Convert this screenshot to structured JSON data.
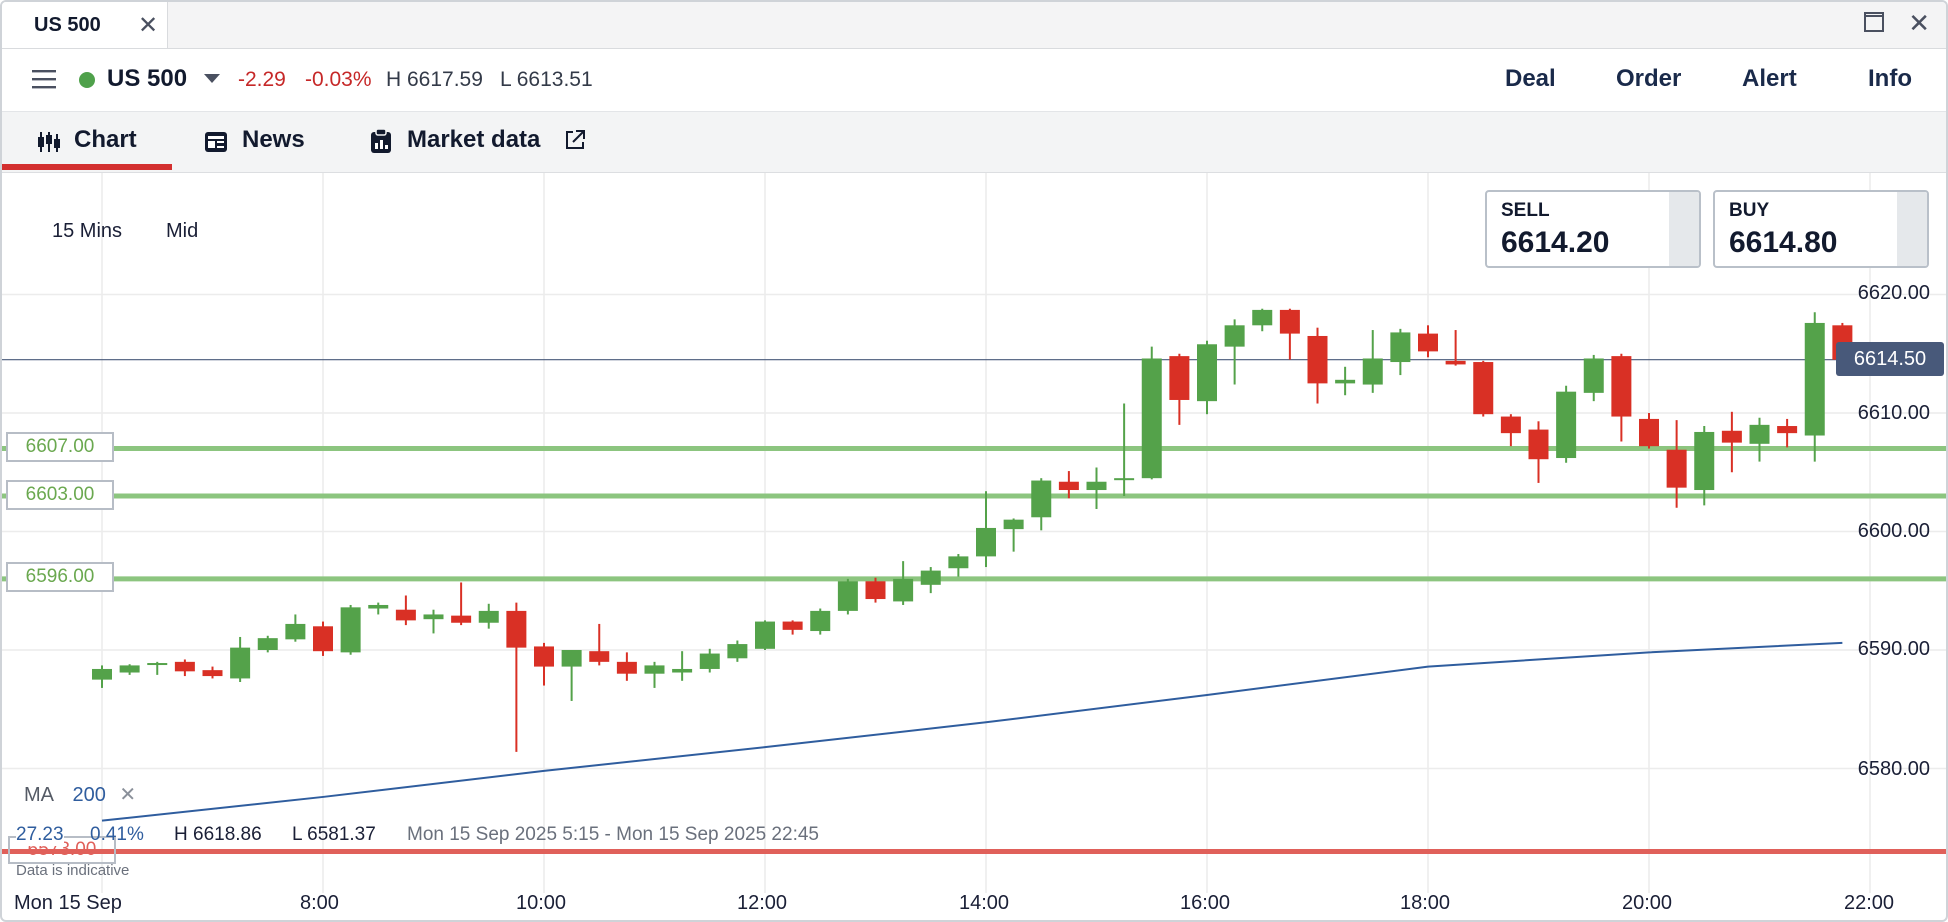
{
  "window": {
    "tab_title": "US 500",
    "close_glyph": "✕",
    "close_window_glyph": "✕"
  },
  "header": {
    "instrument": "US 500",
    "change": "-2.29",
    "change_pct": "-0.03%",
    "high": "H 6617.59",
    "low": "L 6613.51",
    "actions": [
      "Deal",
      "Order",
      "Alert",
      "Info"
    ]
  },
  "tabs": {
    "chart": "Chart",
    "news": "News",
    "market_data": "Market data"
  },
  "chart_panel": {
    "timeframe": "15 Mins",
    "price_type": "Mid",
    "sell_label": "SELL",
    "sell_price": "6614.20",
    "buy_label": "BUY",
    "buy_price": "6614.80",
    "current_price": "6614.50",
    "price_axis": [
      "6620.00",
      "6610.00",
      "6600.00",
      "6590.00",
      "6580.00"
    ],
    "time_axis": [
      "Mon 15 Sep",
      "8:00",
      "10:00",
      "12:00",
      "14:00",
      "16:00",
      "18:00",
      "20:00",
      "22:00"
    ],
    "levels": {
      "green": [
        "6607.00",
        "6603.00",
        "6596.00"
      ],
      "red": "6573.00"
    },
    "ma_label": "MA",
    "ma_period": "200",
    "ma_remove_glyph": "✕",
    "stats": {
      "range": "27.23",
      "range_pct": "0.41%",
      "high": "H 6618.86",
      "low": "L 6581.37",
      "period": "Mon 15 Sep 2025 5:15 - Mon 15 Sep 2025 22:45"
    },
    "disclaimer": "Data is indicative"
  },
  "colors": {
    "up": "#54a24a",
    "down": "#d93025",
    "ma_line": "#2f5d9e",
    "level_green": "#8cc57f",
    "level_red": "#e0605a"
  },
  "chart_data": {
    "type": "candlestick",
    "interval": "15 Mins",
    "date": "Mon 15 Sep 2025",
    "y_range": [
      6572,
      6624
    ],
    "candles": [
      {
        "t": "6:00",
        "o": 6587.5,
        "h": 6588.7,
        "l": 6586.8,
        "c": 6588.4
      },
      {
        "t": "6:15",
        "o": 6588.1,
        "h": 6588.8,
        "l": 6587.9,
        "c": 6588.7
      },
      {
        "t": "6:30",
        "o": 6588.8,
        "h": 6589.0,
        "l": 6587.9,
        "c": 6588.9
      },
      {
        "t": "6:45",
        "o": 6589.0,
        "h": 6589.2,
        "l": 6587.8,
        "c": 6588.2
      },
      {
        "t": "7:00",
        "o": 6588.3,
        "h": 6588.6,
        "l": 6587.6,
        "c": 6587.8
      },
      {
        "t": "7:15",
        "o": 6587.6,
        "h": 6591.1,
        "l": 6587.3,
        "c": 6590.2
      },
      {
        "t": "7:30",
        "o": 6590.0,
        "h": 6591.2,
        "l": 6589.8,
        "c": 6591.0
      },
      {
        "t": "7:45",
        "o": 6590.9,
        "h": 6593.0,
        "l": 6590.7,
        "c": 6592.2
      },
      {
        "t": "8:00",
        "o": 6592.0,
        "h": 6592.4,
        "l": 6589.5,
        "c": 6589.9
      },
      {
        "t": "8:15",
        "o": 6589.8,
        "h": 6593.8,
        "l": 6589.6,
        "c": 6593.6
      },
      {
        "t": "8:30",
        "o": 6593.5,
        "h": 6594.0,
        "l": 6593.0,
        "c": 6593.8
      },
      {
        "t": "8:45",
        "o": 6593.4,
        "h": 6594.6,
        "l": 6592.1,
        "c": 6592.5
      },
      {
        "t": "9:00",
        "o": 6592.6,
        "h": 6593.4,
        "l": 6591.4,
        "c": 6593.0
      },
      {
        "t": "9:15",
        "o": 6592.9,
        "h": 6595.7,
        "l": 6592.1,
        "c": 6592.3
      },
      {
        "t": "9:30",
        "o": 6592.3,
        "h": 6593.9,
        "l": 6591.8,
        "c": 6593.3
      },
      {
        "t": "9:45",
        "o": 6593.3,
        "h": 6594.0,
        "l": 6581.4,
        "c": 6590.2
      },
      {
        "t": "10:00",
        "o": 6590.3,
        "h": 6590.6,
        "l": 6587.0,
        "c": 6588.6
      },
      {
        "t": "10:15",
        "o": 6588.6,
        "h": 6590.0,
        "l": 6585.7,
        "c": 6590.0
      },
      {
        "t": "10:30",
        "o": 6589.9,
        "h": 6592.2,
        "l": 6588.7,
        "c": 6589.0
      },
      {
        "t": "10:45",
        "o": 6589.0,
        "h": 6589.8,
        "l": 6587.4,
        "c": 6588.0
      },
      {
        "t": "11:00",
        "o": 6588.0,
        "h": 6589.0,
        "l": 6586.8,
        "c": 6588.7
      },
      {
        "t": "11:15",
        "o": 6588.1,
        "h": 6589.9,
        "l": 6587.4,
        "c": 6588.4
      },
      {
        "t": "11:30",
        "o": 6588.4,
        "h": 6590.1,
        "l": 6588.1,
        "c": 6589.7
      },
      {
        "t": "11:45",
        "o": 6589.3,
        "h": 6590.8,
        "l": 6589.0,
        "c": 6590.5
      },
      {
        "t": "12:00",
        "o": 6590.1,
        "h": 6592.5,
        "l": 6590.0,
        "c": 6592.4
      },
      {
        "t": "12:15",
        "o": 6592.4,
        "h": 6592.5,
        "l": 6591.3,
        "c": 6591.7
      },
      {
        "t": "12:30",
        "o": 6591.6,
        "h": 6593.5,
        "l": 6591.3,
        "c": 6593.3
      },
      {
        "t": "12:45",
        "o": 6593.3,
        "h": 6596.0,
        "l": 6593.0,
        "c": 6595.8
      },
      {
        "t": "13:00",
        "o": 6595.8,
        "h": 6596.1,
        "l": 6594.0,
        "c": 6594.3
      },
      {
        "t": "13:15",
        "o": 6594.1,
        "h": 6597.5,
        "l": 6593.8,
        "c": 6596.0
      },
      {
        "t": "13:30",
        "o": 6595.5,
        "h": 6597.0,
        "l": 6594.8,
        "c": 6596.7
      },
      {
        "t": "13:45",
        "o": 6596.9,
        "h": 6598.1,
        "l": 6596.2,
        "c": 6597.9
      },
      {
        "t": "14:00",
        "o": 6597.9,
        "h": 6603.4,
        "l": 6597.0,
        "c": 6600.3
      },
      {
        "t": "14:15",
        "o": 6600.2,
        "h": 6601.1,
        "l": 6598.3,
        "c": 6601.0
      },
      {
        "t": "14:30",
        "o": 6601.2,
        "h": 6604.5,
        "l": 6600.1,
        "c": 6604.3
      },
      {
        "t": "14:45",
        "o": 6604.2,
        "h": 6605.1,
        "l": 6602.8,
        "c": 6603.5
      },
      {
        "t": "15:00",
        "o": 6603.5,
        "h": 6605.4,
        "l": 6601.9,
        "c": 6604.2
      },
      {
        "t": "15:15",
        "o": 6604.4,
        "h": 6610.8,
        "l": 6603.0,
        "c": 6604.5
      },
      {
        "t": "15:30",
        "o": 6604.5,
        "h": 6615.6,
        "l": 6604.4,
        "c": 6614.6
      },
      {
        "t": "15:45",
        "o": 6614.8,
        "h": 6615.0,
        "l": 6609.0,
        "c": 6611.1
      },
      {
        "t": "16:00",
        "o": 6611.0,
        "h": 6616.1,
        "l": 6609.9,
        "c": 6615.8
      },
      {
        "t": "16:15",
        "o": 6615.6,
        "h": 6617.9,
        "l": 6612.4,
        "c": 6617.4
      },
      {
        "t": "16:30",
        "o": 6617.4,
        "h": 6618.8,
        "l": 6616.9,
        "c": 6618.7
      },
      {
        "t": "16:45",
        "o": 6618.7,
        "h": 6618.8,
        "l": 6614.5,
        "c": 6616.7
      },
      {
        "t": "17:00",
        "o": 6616.5,
        "h": 6617.2,
        "l": 6610.8,
        "c": 6612.5
      },
      {
        "t": "17:15",
        "o": 6612.5,
        "h": 6613.9,
        "l": 6611.5,
        "c": 6612.8
      },
      {
        "t": "17:30",
        "o": 6612.4,
        "h": 6617.0,
        "l": 6611.7,
        "c": 6614.6
      },
      {
        "t": "17:45",
        "o": 6614.3,
        "h": 6617.1,
        "l": 6613.2,
        "c": 6616.8
      },
      {
        "t": "18:00",
        "o": 6616.7,
        "h": 6617.4,
        "l": 6614.7,
        "c": 6615.2
      },
      {
        "t": "18:15",
        "o": 6614.4,
        "h": 6617.0,
        "l": 6614.0,
        "c": 6614.1
      },
      {
        "t": "18:30",
        "o": 6614.3,
        "h": 6614.4,
        "l": 6609.7,
        "c": 6609.9
      },
      {
        "t": "18:45",
        "o": 6609.7,
        "h": 6609.9,
        "l": 6607.2,
        "c": 6608.3
      },
      {
        "t": "19:00",
        "o": 6608.6,
        "h": 6609.3,
        "l": 6604.1,
        "c": 6606.1
      },
      {
        "t": "19:15",
        "o": 6606.2,
        "h": 6612.3,
        "l": 6605.8,
        "c": 6611.8
      },
      {
        "t": "19:30",
        "o": 6611.7,
        "h": 6614.9,
        "l": 6611.0,
        "c": 6614.6
      },
      {
        "t": "19:45",
        "o": 6614.8,
        "h": 6615.0,
        "l": 6607.6,
        "c": 6609.7
      },
      {
        "t": "20:00",
        "o": 6609.5,
        "h": 6610.0,
        "l": 6607.0,
        "c": 6607.2
      },
      {
        "t": "20:15",
        "o": 6606.9,
        "h": 6609.4,
        "l": 6602.0,
        "c": 6603.7
      },
      {
        "t": "20:30",
        "o": 6603.5,
        "h": 6608.9,
        "l": 6602.2,
        "c": 6608.4
      },
      {
        "t": "20:45",
        "o": 6608.5,
        "h": 6610.1,
        "l": 6605.0,
        "c": 6607.5
      },
      {
        "t": "21:00",
        "o": 6607.4,
        "h": 6609.6,
        "l": 6605.9,
        "c": 6609.0
      },
      {
        "t": "21:15",
        "o": 6608.9,
        "h": 6609.5,
        "l": 6607.1,
        "c": 6608.3
      },
      {
        "t": "21:30",
        "o": 6608.1,
        "h": 6618.5,
        "l": 6605.9,
        "c": 6617.6
      },
      {
        "t": "21:45",
        "o": 6617.4,
        "h": 6617.6,
        "l": 6614.0,
        "c": 6614.5
      }
    ],
    "moving_average": {
      "name": "MA 200",
      "x": [
        "6:00",
        "8:00",
        "10:00",
        "12:00",
        "14:00",
        "16:00",
        "18:00",
        "20:00",
        "21:45"
      ],
      "y": [
        6575.6,
        6577.6,
        6579.8,
        6581.8,
        6583.9,
        6586.2,
        6588.6,
        6589.8,
        6590.6
      ]
    },
    "horizontal_levels": [
      6607.0,
      6603.0,
      6596.0,
      6573.0
    ]
  }
}
